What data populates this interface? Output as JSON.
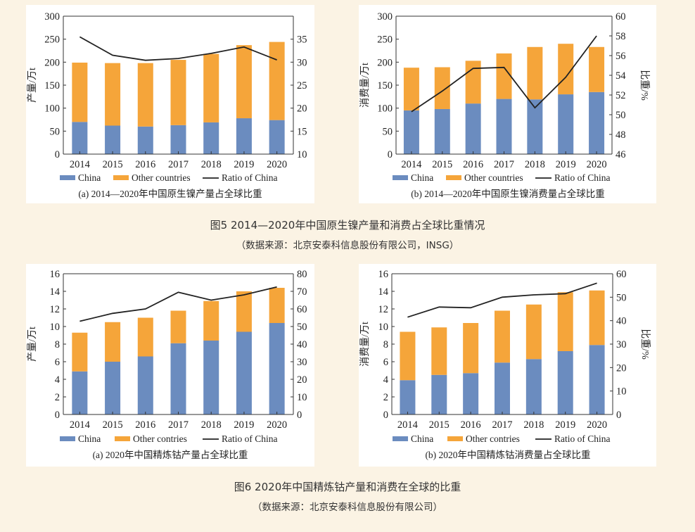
{
  "figures": [
    {
      "caption": "图5 2014—2020年中国原生镍产量和消费占全球比重情况",
      "source": "（数据来源：北京安泰科信息股份有限公司，INSG）"
    },
    {
      "caption": "图6 2020年中国精炼钴产量和消费在全球的比重",
      "source": "（数据来源：北京安泰科信息股份有限公司）"
    }
  ],
  "colors": {
    "china": "#6b8cbf",
    "other": "#f5a53a",
    "ratio": "#222222",
    "page_bg": "#fbf3e4"
  },
  "chart_data": [
    {
      "type": "bar",
      "stacked": true,
      "title": "(a) 2014—2020年中国原生镍产量占全球比重",
      "ylabel": "产量/万t",
      "y2label": "比重/%",
      "ylim": [
        0,
        300
      ],
      "yticks": [
        0,
        50,
        100,
        150,
        200,
        250,
        300
      ],
      "y2lim": [
        10,
        40
      ],
      "y2ticks": [
        10,
        15,
        20,
        25,
        30,
        35
      ],
      "categories": [
        "2014",
        "2015",
        "2016",
        "2017",
        "2018",
        "2019",
        "2020"
      ],
      "legend": [
        "China",
        "Other countries",
        "Ratio of China"
      ],
      "series": [
        {
          "name": "China",
          "axis": "left",
          "values": [
            70,
            62,
            60,
            63,
            69,
            78,
            74
          ]
        },
        {
          "name": "Other countries",
          "axis": "left",
          "values": [
            129,
            136,
            138,
            142,
            149,
            159,
            170
          ]
        },
        {
          "name": "Ratio of China",
          "axis": "right",
          "kind": "line",
          "values": [
            35.5,
            31.5,
            30.4,
            30.8,
            31.9,
            33.3,
            30.5
          ]
        }
      ]
    },
    {
      "type": "bar",
      "stacked": true,
      "title": "(b) 2014—2020年中国原生镍消费量占全球比重",
      "ylabel": "消费量/万t",
      "y2label": "比重/%",
      "ylim": [
        0,
        300
      ],
      "yticks": [
        0,
        50,
        100,
        150,
        200,
        250,
        300
      ],
      "y2lim": [
        46,
        60
      ],
      "y2ticks": [
        46,
        48,
        50,
        52,
        54,
        56,
        58,
        60
      ],
      "categories": [
        "2014",
        "2015",
        "2016",
        "2017",
        "2018",
        "2019",
        "2020"
      ],
      "legend": [
        "China",
        "Other countries",
        "Ratio of China"
      ],
      "series": [
        {
          "name": "China",
          "axis": "left",
          "values": [
            95,
            98,
            110,
            120,
            119,
            130,
            135
          ]
        },
        {
          "name": "Other countries",
          "axis": "left",
          "values": [
            93,
            91,
            93,
            99,
            114,
            110,
            98
          ]
        },
        {
          "name": "Ratio of China",
          "axis": "right",
          "kind": "line",
          "values": [
            50.3,
            52.4,
            54.7,
            54.8,
            50.7,
            53.8,
            58.0
          ]
        }
      ]
    },
    {
      "type": "bar",
      "stacked": true,
      "title": "(a) 2020年中国精炼钴产量占全球比重",
      "ylabel": "产量/万t",
      "y2label": "比重/%",
      "ylim": [
        0,
        16
      ],
      "yticks": [
        0,
        2,
        4,
        6,
        8,
        10,
        12,
        14,
        16
      ],
      "y2lim": [
        0,
        80
      ],
      "y2ticks": [
        0,
        10,
        20,
        30,
        40,
        50,
        60,
        70,
        80
      ],
      "categories": [
        "2014",
        "2015",
        "2016",
        "2017",
        "2018",
        "2019",
        "2020"
      ],
      "legend": [
        "China",
        "Other contries",
        "Ratio of China"
      ],
      "series": [
        {
          "name": "China",
          "axis": "left",
          "values": [
            4.9,
            6.0,
            6.6,
            8.1,
            8.4,
            9.4,
            10.4
          ]
        },
        {
          "name": "Other contries",
          "axis": "left",
          "values": [
            4.4,
            4.5,
            4.4,
            3.7,
            4.5,
            4.6,
            4.0
          ]
        },
        {
          "name": "Ratio of China",
          "axis": "right",
          "kind": "line",
          "values": [
            53,
            57.5,
            60,
            69.5,
            65,
            68,
            72.5
          ]
        }
      ]
    },
    {
      "type": "bar",
      "stacked": true,
      "title": "(b) 2020年中国精炼钴消费量占全球比重",
      "ylabel": "消费量/万t",
      "y2label": "比重/%",
      "ylim": [
        0,
        16
      ],
      "yticks": [
        0,
        2,
        4,
        6,
        8,
        10,
        12,
        14,
        16
      ],
      "y2lim": [
        0,
        60
      ],
      "y2ticks": [
        0,
        10,
        20,
        30,
        40,
        50,
        60
      ],
      "categories": [
        "2014",
        "2015",
        "2016",
        "2017",
        "2018",
        "2019",
        "2020"
      ],
      "legend": [
        "China",
        "Other contries",
        "Ratio of China"
      ],
      "series": [
        {
          "name": "China",
          "axis": "left",
          "values": [
            3.9,
            4.5,
            4.7,
            5.9,
            6.3,
            7.2,
            7.9
          ]
        },
        {
          "name": "Other contries",
          "axis": "left",
          "values": [
            5.5,
            5.4,
            5.7,
            5.9,
            6.2,
            6.7,
            6.2
          ]
        },
        {
          "name": "Ratio of China",
          "axis": "right",
          "kind": "line",
          "values": [
            41.5,
            45.8,
            45.5,
            50.0,
            51.0,
            51.5,
            56.0
          ]
        }
      ]
    }
  ]
}
